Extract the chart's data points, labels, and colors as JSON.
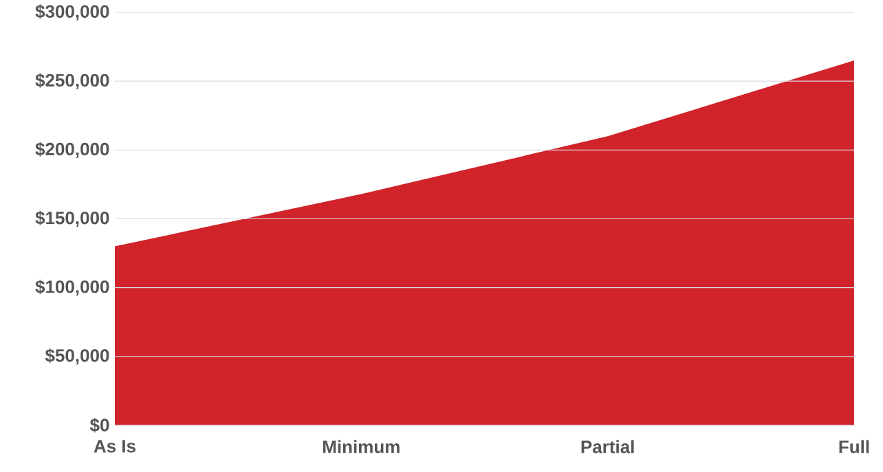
{
  "chart_data": {
    "type": "area",
    "categories": [
      "As Is",
      "Minimum",
      "Partial",
      "Full"
    ],
    "values": [
      130000,
      168000,
      210000,
      265000
    ],
    "color": "#d0232a",
    "ylim": [
      0,
      300000
    ],
    "yticks": [
      {
        "value": 0,
        "label": "$0"
      },
      {
        "value": 50000,
        "label": "$50,000"
      },
      {
        "value": 100000,
        "label": "$100,000"
      },
      {
        "value": 150000,
        "label": "$150,000"
      },
      {
        "value": 200000,
        "label": "$200,000"
      },
      {
        "value": 250000,
        "label": "$250,000"
      },
      {
        "value": 300000,
        "label": "$300,000"
      }
    ],
    "grid": "y"
  }
}
